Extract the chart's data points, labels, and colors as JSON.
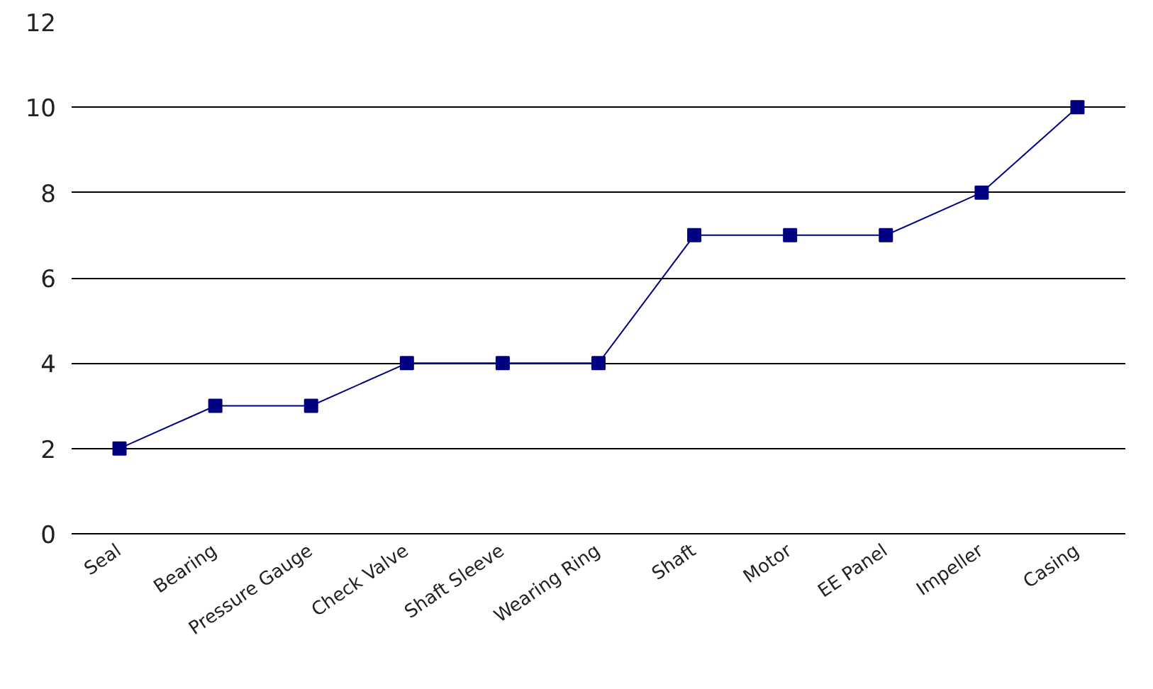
{
  "chart_data": {
    "type": "line",
    "categories": [
      "Seal",
      "Bearing",
      "Pressure Gauge",
      "Check Valve",
      "Shaft Sleeve",
      "Wearing Ring",
      "Shaft",
      "Motor",
      "EE Panel",
      "Impeller",
      "Casing"
    ],
    "series": [
      {
        "color": "#000080",
        "values": [
          2,
          3,
          3,
          4,
          4,
          4,
          7,
          7,
          7,
          8,
          10
        ]
      }
    ],
    "ylim": [
      0,
      12
    ],
    "yticks": [
      0,
      2,
      4,
      6,
      8,
      10,
      12
    ],
    "grid": "y",
    "marker": "square",
    "line_style": "solid"
  }
}
